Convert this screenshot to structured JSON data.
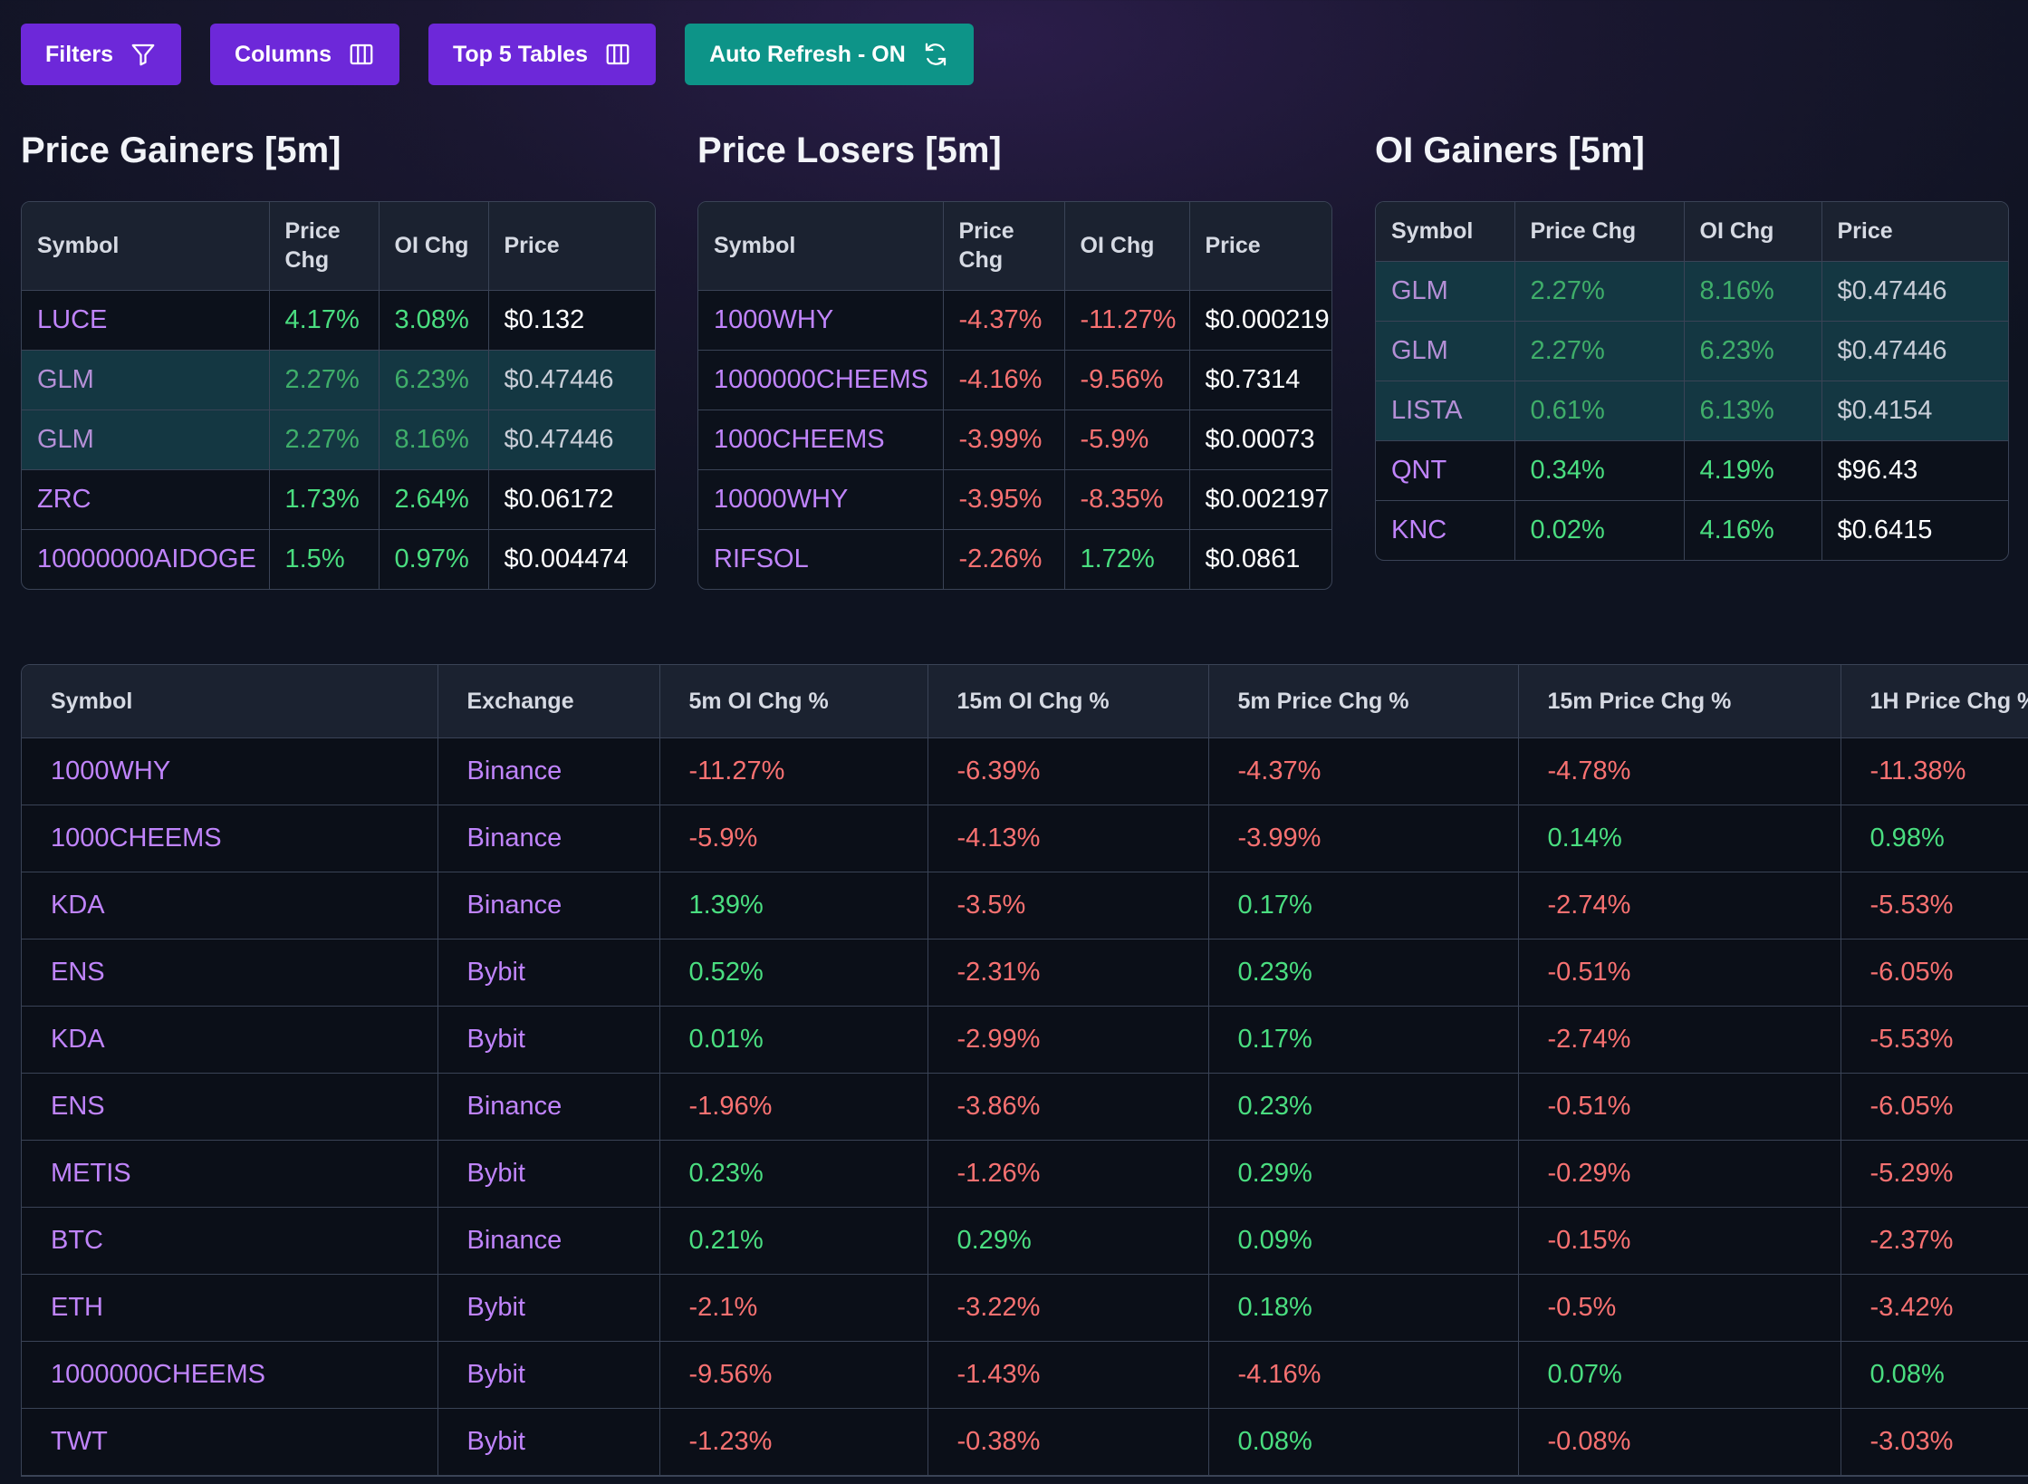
{
  "toolbar": {
    "filters": "Filters",
    "columns": "Columns",
    "top5": "Top 5 Tables",
    "auto_refresh": "Auto Refresh - ON"
  },
  "gainers": {
    "title": "Price Gainers [5m]",
    "headers": [
      "Symbol",
      "Price Chg",
      "OI Chg",
      "Price"
    ],
    "rows": [
      {
        "symbol": "LUCE",
        "price_chg": "4.17%",
        "oi_chg": "3.08%",
        "price": "$0.132"
      },
      {
        "symbol": "GLM",
        "price_chg": "2.27%",
        "oi_chg": "6.23%",
        "price": "$0.47446"
      },
      {
        "symbol": "GLM",
        "price_chg": "2.27%",
        "oi_chg": "8.16%",
        "price": "$0.47446"
      },
      {
        "symbol": "ZRC",
        "price_chg": "1.73%",
        "oi_chg": "2.64%",
        "price": "$0.06172"
      },
      {
        "symbol": "10000000AIDOGE",
        "price_chg": "1.5%",
        "oi_chg": "0.97%",
        "price": "$0.004474"
      }
    ]
  },
  "losers": {
    "title": "Price Losers [5m]",
    "headers": [
      "Symbol",
      "Price Chg",
      "OI Chg",
      "Price"
    ],
    "rows": [
      {
        "symbol": "1000WHY",
        "price_chg": "-4.37%",
        "oi_chg": "-11.27%",
        "price": "$0.000219"
      },
      {
        "symbol": "1000000CHEEMS",
        "price_chg": "-4.16%",
        "oi_chg": "-9.56%",
        "price": "$0.7314"
      },
      {
        "symbol": "1000CHEEMS",
        "price_chg": "-3.99%",
        "oi_chg": "-5.9%",
        "price": "$0.00073"
      },
      {
        "symbol": "10000WHY",
        "price_chg": "-3.95%",
        "oi_chg": "-8.35%",
        "price": "$0.002197"
      },
      {
        "symbol": "RIFSOL",
        "price_chg": "-2.26%",
        "oi_chg": "1.72%",
        "price": "$0.0861"
      }
    ]
  },
  "oi_gainers": {
    "title": "OI Gainers [5m]",
    "headers": [
      "Symbol",
      "Price Chg",
      "OI Chg",
      "Price"
    ],
    "rows": [
      {
        "symbol": "GLM",
        "price_chg": "2.27%",
        "oi_chg": "8.16%",
        "price": "$0.47446"
      },
      {
        "symbol": "GLM",
        "price_chg": "2.27%",
        "oi_chg": "6.23%",
        "price": "$0.47446"
      },
      {
        "symbol": "LISTA",
        "price_chg": "0.61%",
        "oi_chg": "6.13%",
        "price": "$0.4154"
      },
      {
        "symbol": "QNT",
        "price_chg": "0.34%",
        "oi_chg": "4.19%",
        "price": "$96.43"
      },
      {
        "symbol": "KNC",
        "price_chg": "0.02%",
        "oi_chg": "4.16%",
        "price": "$0.6415"
      }
    ]
  },
  "main_table": {
    "headers": [
      "Symbol",
      "Exchange",
      "5m OI Chg %",
      "15m OI Chg %",
      "5m Price Chg %",
      "15m Price Chg %",
      "1H Price Chg %"
    ],
    "rows": [
      [
        "1000WHY",
        "Binance",
        "-11.27%",
        "-6.39%",
        "-4.37%",
        "-4.78%",
        "-11.38%"
      ],
      [
        "1000CHEEMS",
        "Binance",
        "-5.9%",
        "-4.13%",
        "-3.99%",
        "0.14%",
        "0.98%"
      ],
      [
        "KDA",
        "Binance",
        "1.39%",
        "-3.5%",
        "0.17%",
        "-2.74%",
        "-5.53%"
      ],
      [
        "ENS",
        "Bybit",
        "0.52%",
        "-2.31%",
        "0.23%",
        "-0.51%",
        "-6.05%"
      ],
      [
        "KDA",
        "Bybit",
        "0.01%",
        "-2.99%",
        "0.17%",
        "-2.74%",
        "-5.53%"
      ],
      [
        "ENS",
        "Binance",
        "-1.96%",
        "-3.86%",
        "0.23%",
        "-0.51%",
        "-6.05%"
      ],
      [
        "METIS",
        "Bybit",
        "0.23%",
        "-1.26%",
        "0.29%",
        "-0.29%",
        "-5.29%"
      ],
      [
        "BTC",
        "Binance",
        "0.21%",
        "0.29%",
        "0.09%",
        "-0.15%",
        "-2.37%"
      ],
      [
        "ETH",
        "Bybit",
        "-2.1%",
        "-3.22%",
        "0.18%",
        "-0.5%",
        "-3.42%"
      ],
      [
        "1000000CHEEMS",
        "Bybit",
        "-9.56%",
        "-1.43%",
        "-4.16%",
        "0.07%",
        "0.08%"
      ],
      [
        "TWT",
        "Bybit",
        "-1.23%",
        "-0.38%",
        "0.08%",
        "-0.08%",
        "-3.03%"
      ]
    ]
  },
  "colors": {
    "accent_purple": "#6d28d9",
    "accent_teal": "#0d9488",
    "positive": "#4ade80",
    "negative": "#f87171",
    "symbol": "#c084fc"
  }
}
